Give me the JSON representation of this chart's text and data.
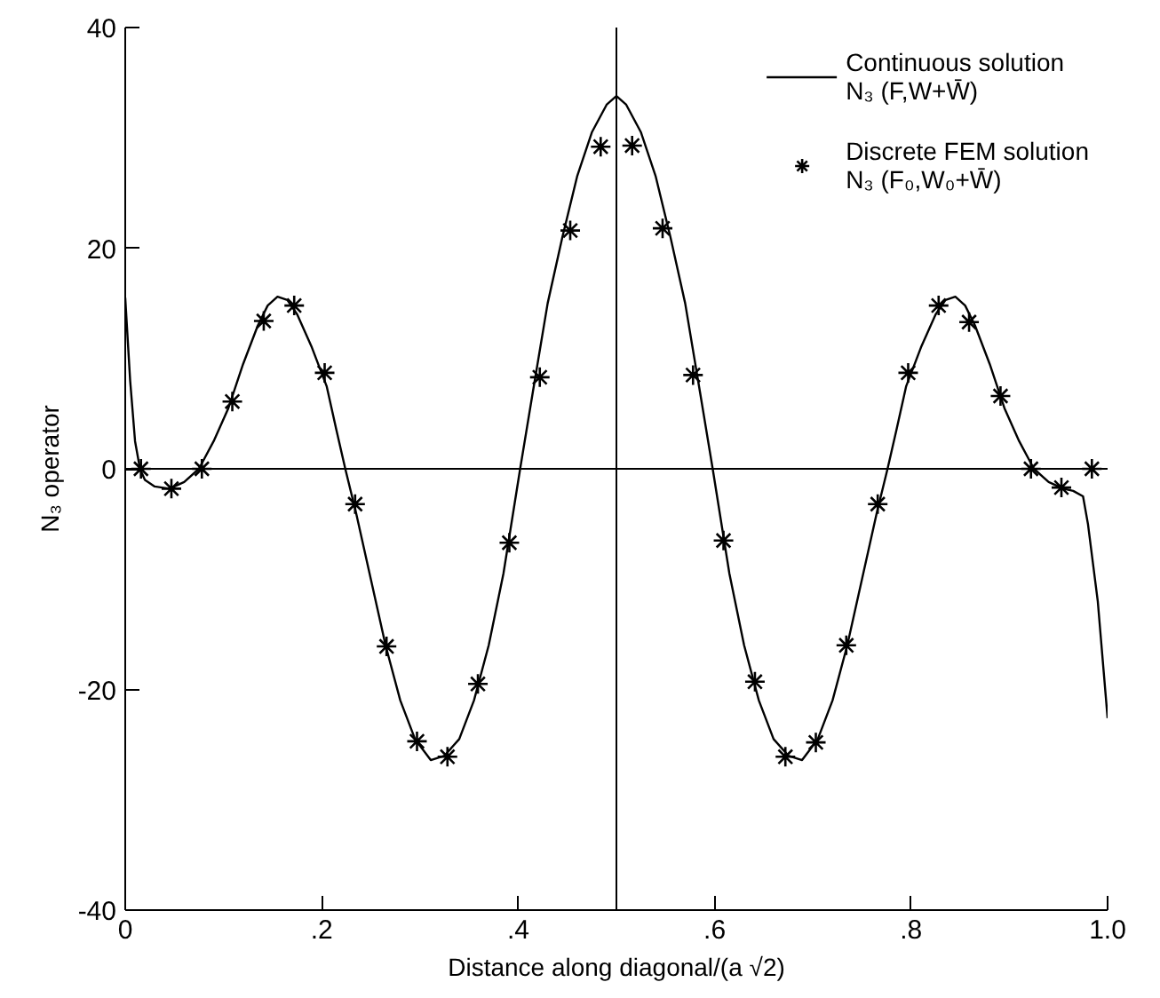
{
  "chart_data": {
    "type": "line",
    "xlabel": "Distance along diagonal/(a √2)",
    "ylabel": "N₃ operator",
    "xlim": [
      0,
      1.0
    ],
    "ylim": [
      -40,
      40
    ],
    "xticks": [
      {
        "value": 0,
        "label": "0"
      },
      {
        "value": 0.2,
        "label": ".2"
      },
      {
        "value": 0.4,
        "label": ".4"
      },
      {
        "value": 0.6,
        "label": ".6"
      },
      {
        "value": 0.8,
        "label": ".8"
      },
      {
        "value": 1.0,
        "label": "1.0"
      }
    ],
    "yticks": [
      -40,
      -20,
      0,
      20,
      40
    ],
    "grid": false,
    "legend": "top right",
    "ref_lines": [
      {
        "axis": "y",
        "value": 0,
        "color": "#000000"
      },
      {
        "axis": "x",
        "value": 0.5,
        "color": "#000000"
      }
    ],
    "series": [
      {
        "name": "Continuous solution\nN₃ (F,W+W̄)",
        "color": "#000000",
        "line_style": "solid",
        "marker": "none",
        "x": [
          0,
          0.005,
          0.01,
          0.015,
          0.02,
          0.03,
          0.045,
          0.06,
          0.075,
          0.09,
          0.105,
          0.12,
          0.135,
          0.145,
          0.155,
          0.165,
          0.175,
          0.19,
          0.205,
          0.215,
          0.224,
          0.235,
          0.25,
          0.265,
          0.28,
          0.295,
          0.311,
          0.325,
          0.34,
          0.355,
          0.37,
          0.385,
          0.402,
          0.415,
          0.43,
          0.445,
          0.46,
          0.475,
          0.49,
          0.5,
          0.51,
          0.525,
          0.54,
          0.555,
          0.57,
          0.585,
          0.598,
          0.615,
          0.63,
          0.645,
          0.66,
          0.675,
          0.689,
          0.705,
          0.72,
          0.735,
          0.75,
          0.765,
          0.776,
          0.785,
          0.795,
          0.81,
          0.825,
          0.835,
          0.845,
          0.855,
          0.865,
          0.88,
          0.895,
          0.91,
          0.925,
          0.94,
          0.955,
          0.965,
          0.975,
          0.98,
          0.99,
          1.0
        ],
        "values": [
          15.5,
          8,
          2.5,
          0,
          -1,
          -1.6,
          -1.8,
          -1.2,
          0,
          2.5,
          5.5,
          9.5,
          13,
          14.8,
          15.6,
          15.3,
          14,
          11,
          7.5,
          3.5,
          0,
          -4,
          -10,
          -16,
          -21,
          -24.5,
          -26.4,
          -26,
          -24.5,
          -21,
          -16,
          -9.5,
          0,
          7,
          15,
          21,
          26.5,
          30.5,
          33,
          33.8,
          33,
          30.5,
          26.5,
          21,
          15,
          7,
          0,
          -9.5,
          -16,
          -21,
          -24.5,
          -26,
          -26.4,
          -24.5,
          -21,
          -16,
          -10,
          -4,
          0,
          3.5,
          7.5,
          11,
          14,
          15.3,
          15.6,
          14.8,
          13,
          9.5,
          5.5,
          2.5,
          0,
          -1.2,
          -1.8,
          -2,
          -2.5,
          -5,
          -12,
          -22.6
        ]
      },
      {
        "name": "Discrete FEM solution\nN₃ (F₀,W₀+W̄)",
        "type": "scatter",
        "color": "#000000",
        "marker": "cross",
        "x": [
          0.016,
          0.047,
          0.078,
          0.109,
          0.141,
          0.172,
          0.203,
          0.234,
          0.266,
          0.297,
          0.328,
          0.359,
          0.391,
          0.422,
          0.453,
          0.484,
          0.516,
          0.547,
          0.578,
          0.609,
          0.641,
          0.672,
          0.703,
          0.734,
          0.766,
          0.797,
          0.828,
          0.859,
          0.891,
          0.922,
          0.953,
          0.984
        ],
        "values": [
          0,
          -1.8,
          0,
          6.1,
          13.4,
          14.8,
          8.7,
          -3.2,
          -16.1,
          -24.7,
          -26.1,
          -19.5,
          -6.7,
          8.3,
          21.6,
          29.2,
          29.3,
          21.8,
          8.5,
          -6.5,
          -19.3,
          -26.1,
          -24.8,
          -16,
          -3.2,
          8.7,
          14.8,
          13.3,
          6.6,
          0,
          -1.7,
          0
        ]
      }
    ]
  }
}
